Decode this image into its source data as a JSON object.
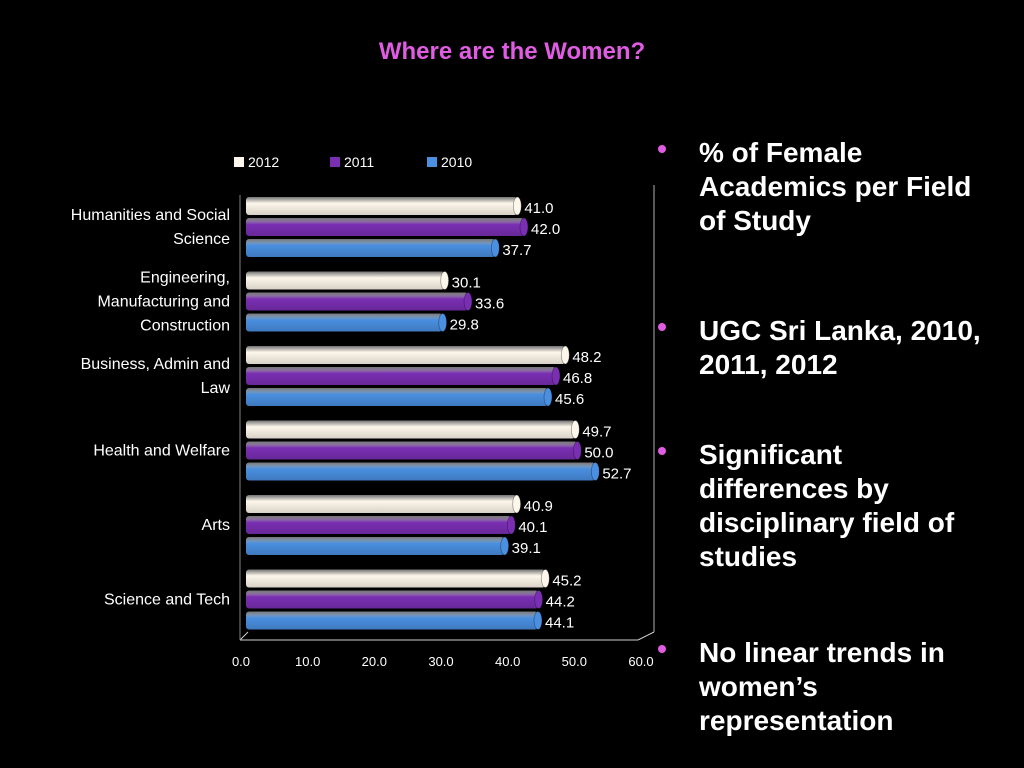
{
  "title": "Where are the Women?",
  "chart_data": {
    "type": "bar",
    "orientation": "horizontal",
    "categories": [
      "Humanities and Social Science",
      "Engineering, Manufacturing and Construction",
      "Business, Admin and Law",
      "Health and Welfare",
      "Arts",
      "Science and Tech"
    ],
    "series": [
      {
        "name": "2012",
        "color": "#fdf6ea",
        "values": [
          41.0,
          30.1,
          48.2,
          49.7,
          40.9,
          45.2
        ]
      },
      {
        "name": "2011",
        "color": "#7a2fb3",
        "values": [
          42.0,
          33.6,
          46.8,
          50.0,
          40.1,
          44.2
        ]
      },
      {
        "name": "2010",
        "color": "#4a8fe0",
        "values": [
          37.7,
          29.8,
          45.6,
          52.7,
          39.1,
          44.1
        ]
      }
    ],
    "xlim": [
      0,
      60
    ],
    "xticks": [
      "0.0",
      "10.0",
      "20.0",
      "30.0",
      "40.0",
      "50.0",
      "60.0"
    ],
    "legend": "top",
    "grid": false,
    "data_labels": true
  },
  "bullets": [
    "% of Female Academics per Field of Study",
    "UGC Sri Lanka, 2010, 2011, 2012",
    "Significant differences by disciplinary field of studies",
    "No linear trends in women’s representation"
  ]
}
